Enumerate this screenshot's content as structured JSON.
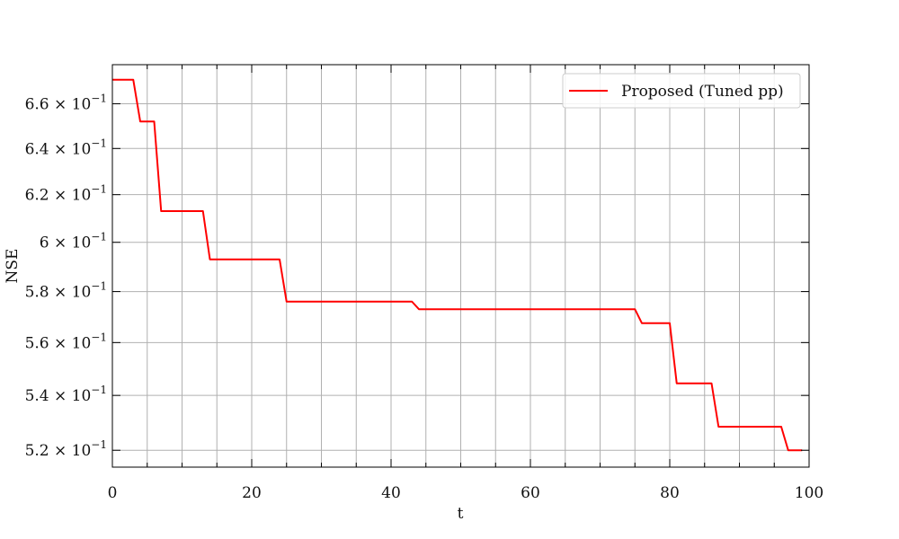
{
  "chart_data": {
    "type": "line",
    "title": "",
    "xlabel": "t",
    "ylabel": "NSE",
    "xlim": [
      0,
      100
    ],
    "ylim": [
      0.514,
      0.678
    ],
    "y_scale": "log",
    "grid": true,
    "legend_position": "top-right",
    "x_ticks": [
      0,
      20,
      40,
      60,
      80,
      100
    ],
    "x_tick_labels": [
      "0",
      "20",
      "40",
      "60",
      "80",
      "100"
    ],
    "x_minor_ticks": [
      5,
      10,
      15,
      25,
      30,
      35,
      45,
      50,
      55,
      65,
      70,
      75,
      85,
      90,
      95
    ],
    "y_ticks": [
      {
        "value": 0.52,
        "mantissa": "5.2",
        "exponent": "−1"
      },
      {
        "value": 0.54,
        "mantissa": "5.4",
        "exponent": "−1"
      },
      {
        "value": 0.56,
        "mantissa": "5.6",
        "exponent": "−1"
      },
      {
        "value": 0.58,
        "mantissa": "5.8",
        "exponent": "−1"
      },
      {
        "value": 0.6,
        "mantissa": "6",
        "exponent": "−1"
      },
      {
        "value": 0.62,
        "mantissa": "6.2",
        "exponent": "−1"
      },
      {
        "value": 0.64,
        "mantissa": "6.4",
        "exponent": "−1"
      },
      {
        "value": 0.66,
        "mantissa": "6.6",
        "exponent": "−1"
      }
    ],
    "series": [
      {
        "name": "Proposed (Tuned pp)",
        "color": "#ff0000",
        "x": [
          0,
          3,
          4,
          6,
          7,
          13,
          14,
          24,
          25,
          43,
          44,
          75,
          76,
          80,
          81,
          86,
          87,
          96,
          97,
          99
        ],
        "y": [
          0.671,
          0.671,
          0.652,
          0.652,
          0.613,
          0.613,
          0.593,
          0.593,
          0.576,
          0.576,
          0.573,
          0.573,
          0.5675,
          0.5675,
          0.5445,
          0.5445,
          0.5285,
          0.5285,
          0.52,
          0.52
        ]
      }
    ]
  }
}
